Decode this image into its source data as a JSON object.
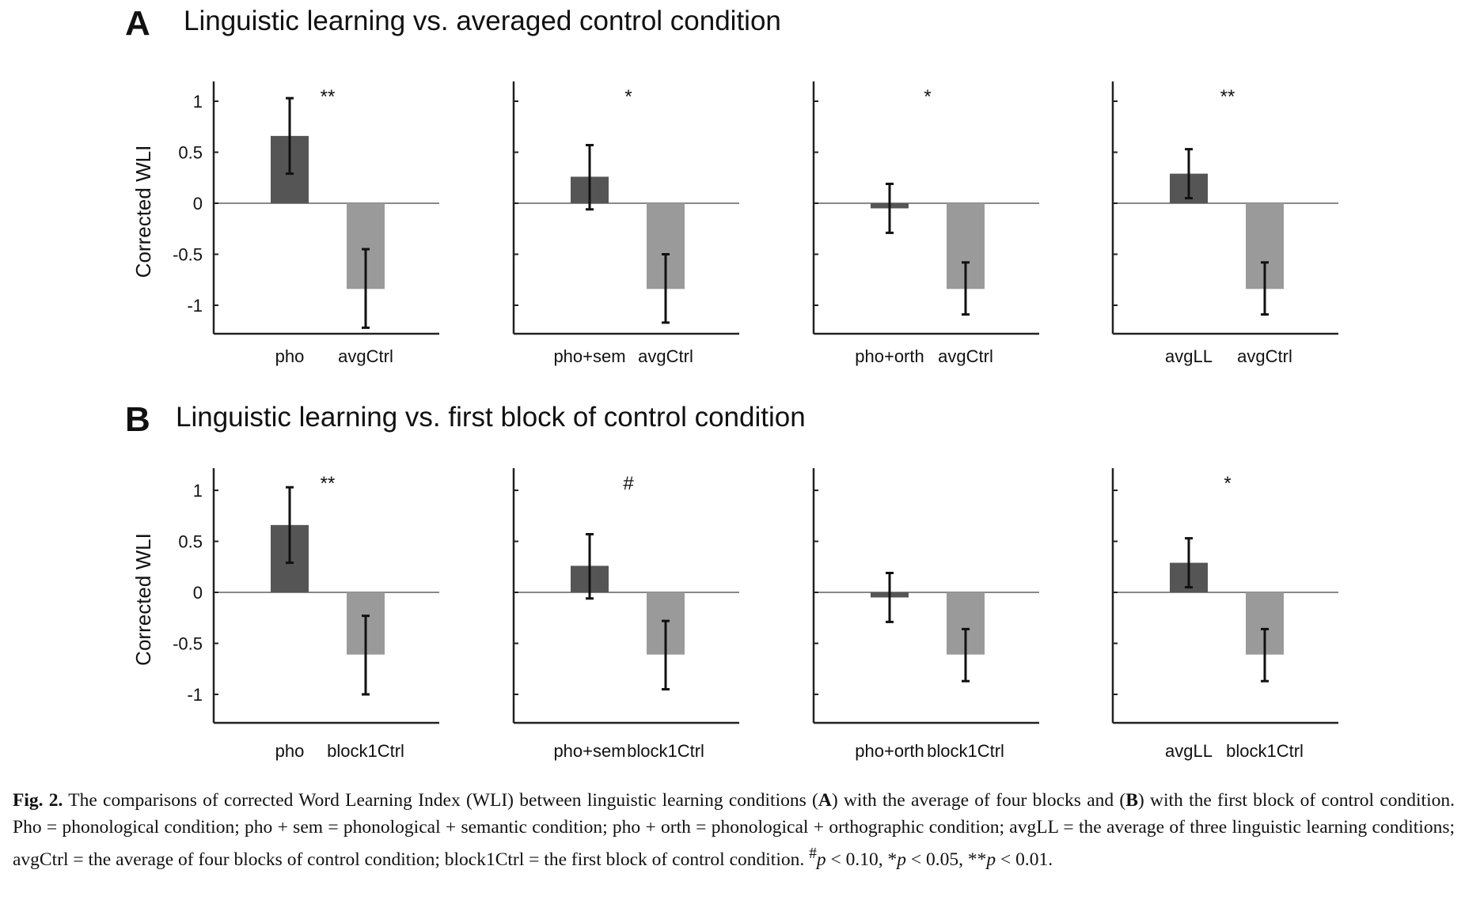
{
  "chart_data": [
    {
      "panel": "A",
      "type": "bar",
      "title": "Linguistic learning vs. averaged control condition",
      "ylabel": "Corrected WLI",
      "ylim": [
        -1.28,
        1.2
      ],
      "yticks": [
        1,
        0.5,
        0,
        -0.5,
        -1
      ],
      "ytick_labels": [
        "1",
        "0.5",
        "0",
        "-0.5",
        "-1"
      ],
      "subplots": [
        {
          "categories": [
            "pho",
            "avgCtrl"
          ],
          "values": [
            0.66,
            -0.84
          ],
          "err_low": [
            0.29,
            -1.22
          ],
          "err_high": [
            1.03,
            -0.45
          ],
          "significance": "**",
          "colors": [
            "#555555",
            "#9a9a9a"
          ]
        },
        {
          "categories": [
            "pho+sem",
            "avgCtrl"
          ],
          "values": [
            0.26,
            -0.84
          ],
          "err_low": [
            -0.06,
            -1.17
          ],
          "err_high": [
            0.57,
            -0.5
          ],
          "significance": "*",
          "colors": [
            "#555555",
            "#9a9a9a"
          ]
        },
        {
          "categories": [
            "pho+orth",
            "avgCtrl"
          ],
          "values": [
            -0.05,
            -0.84
          ],
          "err_low": [
            -0.29,
            -1.09
          ],
          "err_high": [
            0.19,
            -0.58
          ],
          "significance": "*",
          "colors": [
            "#555555",
            "#9a9a9a"
          ]
        },
        {
          "categories": [
            "avgLL",
            "avgCtrl"
          ],
          "values": [
            0.29,
            -0.84
          ],
          "err_low": [
            0.05,
            -1.09
          ],
          "err_high": [
            0.53,
            -0.58
          ],
          "significance": "**",
          "colors": [
            "#555555",
            "#9a9a9a"
          ]
        }
      ]
    },
    {
      "panel": "B",
      "type": "bar",
      "title": "Linguistic learning vs. first block of control condition",
      "ylabel": "Corrected WLI",
      "ylim": [
        -1.28,
        1.2
      ],
      "yticks": [
        1,
        0.5,
        0,
        -0.5,
        -1
      ],
      "ytick_labels": [
        "1",
        "0.5",
        "0",
        "-0.5",
        "-1"
      ],
      "subplots": [
        {
          "categories": [
            "pho",
            "block1Ctrl"
          ],
          "values": [
            0.66,
            -0.61
          ],
          "err_low": [
            0.29,
            -1.0
          ],
          "err_high": [
            1.03,
            -0.23
          ],
          "significance": "**",
          "colors": [
            "#555555",
            "#9a9a9a"
          ]
        },
        {
          "categories": [
            "pho+sem",
            "block1Ctrl"
          ],
          "values": [
            0.26,
            -0.61
          ],
          "err_low": [
            -0.06,
            -0.95
          ],
          "err_high": [
            0.57,
            -0.28
          ],
          "significance": "#",
          "colors": [
            "#555555",
            "#9a9a9a"
          ]
        },
        {
          "categories": [
            "pho+orth",
            "block1Ctrl"
          ],
          "values": [
            -0.05,
            -0.61
          ],
          "err_low": [
            -0.29,
            -0.87
          ],
          "err_high": [
            0.19,
            -0.36
          ],
          "significance": "",
          "colors": [
            "#555555",
            "#9a9a9a"
          ]
        },
        {
          "categories": [
            "avgLL",
            "block1Ctrl"
          ],
          "values": [
            0.29,
            -0.61
          ],
          "err_low": [
            0.05,
            -0.87
          ],
          "err_high": [
            0.53,
            -0.36
          ],
          "significance": "*",
          "colors": [
            "#555555",
            "#9a9a9a"
          ]
        }
      ]
    }
  ],
  "caption": {
    "fig_label": "Fig. 2.",
    "text_1": " The comparisons of corrected Word Learning Index (WLI) between linguistic learning conditions (",
    "bold_a": "A",
    "text_2": ") with the average of four blocks and (",
    "bold_b": "B",
    "text_3": ") with the first block of control condition. Pho = phonological condition; pho + sem = phonological + semantic condition; pho + orth = phonological + orthographic condition; avgLL = the average of three linguistic learning conditions; avgCtrl = the average of four blocks of control condition; block1Ctrl = the first block of control condition. ",
    "sup_hash": "#",
    "p_1": "p",
    "text_4": " < 0.10, *",
    "p_2": "p",
    "text_5": " < 0.05, **",
    "p_3": "p",
    "text_6": " < 0.01."
  }
}
